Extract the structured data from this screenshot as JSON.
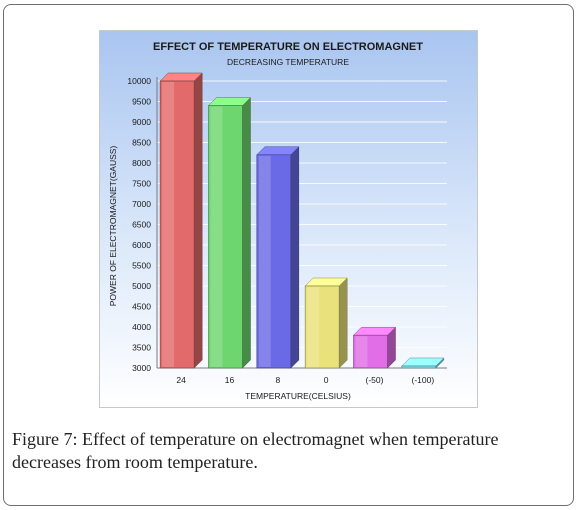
{
  "figure": {
    "label": "Figure 7:",
    "text": "Effect of temperature on electromagnet when temperature decreases from room temperature."
  },
  "chart_data": {
    "type": "bar",
    "title": "EFFECT OF TEMPERATURE ON ELECTROMAGNET",
    "subtitle": "DECREASING TEMPERATURE",
    "xlabel": "TEMPERATURE(CELSIUS)",
    "ylabel": "POWER OF ELECTROMAGNET(GAUSS)",
    "categories": [
      "24",
      "16",
      "8",
      "0",
      "(-50)",
      "(-100)"
    ],
    "values": [
      10000,
      9400,
      8200,
      5000,
      3800,
      3000
    ],
    "ylim": [
      3000,
      10000
    ],
    "yticks": [
      3000,
      3500,
      4000,
      4500,
      5000,
      5500,
      6000,
      6500,
      7000,
      7500,
      8000,
      8500,
      9000,
      9500,
      10000
    ],
    "grid": true,
    "colors": [
      "#e36a6a",
      "#6ed66e",
      "#6a6ae6",
      "#e9e27a",
      "#e16ee6",
      "#7ee4ec"
    ],
    "background": "#bcd3f3"
  }
}
